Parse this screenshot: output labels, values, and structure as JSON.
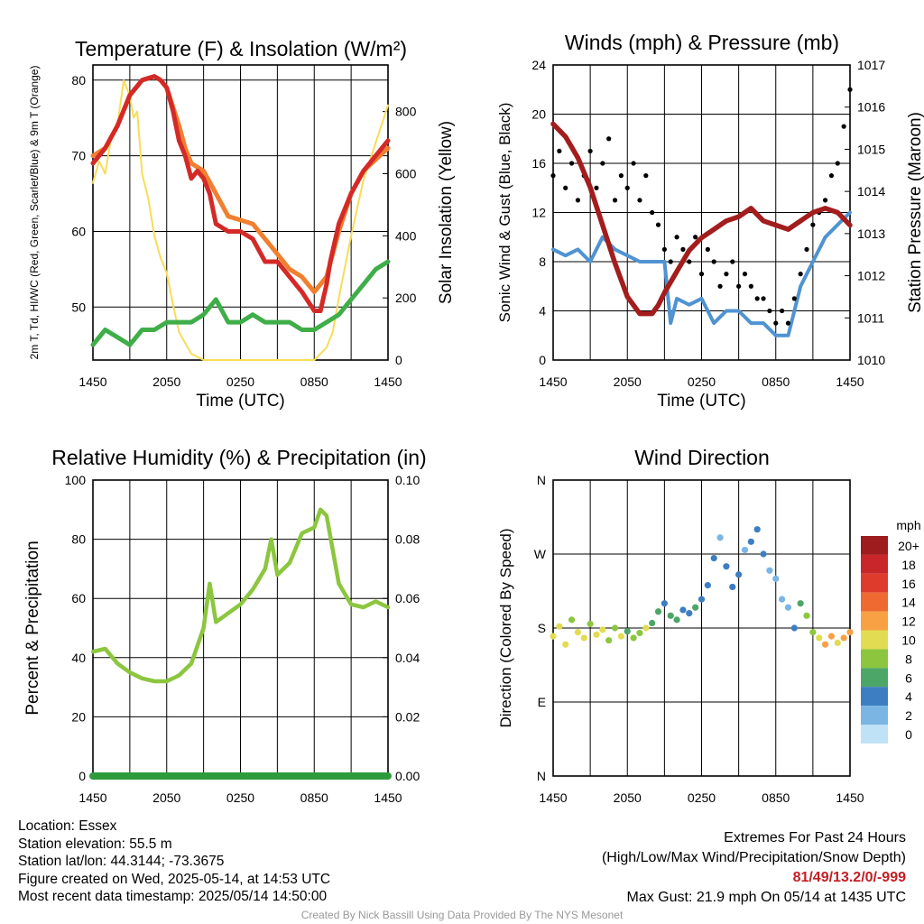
{
  "colors": {
    "temperature": "#d42a27",
    "dewpoint": "#3fae49",
    "t9m": "#f07f2f",
    "insolation": "#f7dd57",
    "wind": "#4f93d1",
    "gust": "#000000",
    "pressure": "#a31d1d",
    "rh": "#8cc63f",
    "precip": "#2d9b3c"
  },
  "info": {
    "location": "Location: Essex",
    "elevation": "Station elevation: 55.5 m",
    "latlon": "Station lat/lon: 44.3144; -73.3675",
    "created": "Figure created on Wed, 2025-05-14, at 14:53 UTC",
    "recent": "Most recent data timestamp: 2025/05/14 14:50:00"
  },
  "extremes": {
    "title": "Extremes For Past 24 Hours",
    "subtitle": "(High/Low/Max Wind/Precipitation/Snow Depth)",
    "values": "81/49/13.2/0/-999",
    "gust": "Max Gust: 21.9 mph On 05/14 at 1435 UTC"
  },
  "credit": "Created By Nick Bassill Using Data Provided By The NYS Mesonet",
  "chart_data": [
    {
      "type": "line",
      "title": "Temperature (F) & Insolation (W/m²)",
      "xlabel": "Time (UTC)",
      "ylabel": "2m T, Td, HI/WC (Red, Green, Scarlet/Blue) & 9m T (Orange)",
      "ylabel_right": "Solar Insolation (Yellow)",
      "x_ticks": [
        "1450",
        "2050",
        "0250",
        "0850",
        "1450"
      ],
      "x_range_hours": [
        0,
        24
      ],
      "ylim": [
        43,
        82
      ],
      "ylim_right": [
        0,
        950
      ],
      "y_ticks": [
        50,
        60,
        70,
        80
      ],
      "y_ticks_right": [
        0,
        200,
        400,
        600,
        800
      ],
      "grid": true,
      "series": [
        {
          "name": "2m T",
          "color_key": "temperature",
          "axis": "left",
          "x": [
            0,
            1,
            2,
            3,
            4,
            5,
            5.5,
            6,
            6.5,
            7,
            7.5,
            8,
            8.5,
            9,
            9.5,
            10,
            11,
            12,
            13,
            14,
            15,
            16,
            17,
            18,
            18.5,
            19,
            19.3,
            20,
            21,
            22,
            23,
            24
          ],
          "y": [
            69,
            71,
            74,
            78,
            80,
            80.5,
            80,
            79,
            76,
            72,
            70,
            67,
            68,
            67,
            65,
            61,
            60,
            60,
            59,
            56,
            56,
            54,
            52,
            49.5,
            49.5,
            53,
            56,
            61,
            65,
            68,
            70,
            72
          ]
        },
        {
          "name": "9m T",
          "color_key": "t9m",
          "axis": "left",
          "x": [
            0,
            1,
            2,
            3,
            4,
            5,
            5.5,
            6,
            6.5,
            7,
            7.5,
            8,
            9,
            10,
            11,
            12,
            13,
            14,
            15,
            16,
            17,
            18,
            19,
            20,
            21,
            22,
            23,
            24
          ],
          "y": [
            70,
            71,
            74,
            78,
            80,
            80.5,
            80,
            79,
            76.5,
            74,
            71,
            69,
            68,
            65,
            62,
            61.5,
            61,
            59,
            57,
            55,
            54,
            52,
            54,
            60,
            65,
            68,
            69.5,
            71
          ]
        },
        {
          "name": "2m Td",
          "color_key": "dewpoint",
          "axis": "left",
          "x": [
            0,
            1,
            2,
            3,
            4,
            5,
            6,
            7,
            8,
            9,
            10,
            11,
            12,
            13,
            14,
            15,
            16,
            17,
            18,
            19,
            20,
            21,
            22,
            23,
            24
          ],
          "y": [
            45,
            47,
            46,
            45,
            47,
            47,
            48,
            48,
            48,
            49,
            51,
            48,
            48,
            49,
            48,
            48,
            48,
            47,
            47,
            48,
            49,
            51,
            53,
            55,
            56
          ]
        },
        {
          "name": "Insolation",
          "color_key": "insolation",
          "axis": "right",
          "x": [
            0,
            0.5,
            1,
            1.5,
            2,
            2.5,
            3,
            3.3,
            3.6,
            4,
            4.5,
            5,
            5.5,
            6,
            6.5,
            7,
            8,
            9,
            10,
            11,
            12,
            13,
            14,
            15,
            16,
            17,
            18,
            19,
            19.5,
            20,
            21,
            22,
            23,
            24
          ],
          "y": [
            570,
            640,
            600,
            720,
            760,
            900,
            850,
            780,
            800,
            600,
            520,
            400,
            330,
            280,
            180,
            90,
            20,
            0,
            0,
            0,
            0,
            0,
            0,
            0,
            0,
            0,
            0,
            40,
            90,
            200,
            400,
            580,
            700,
            820
          ]
        }
      ]
    },
    {
      "type": "line",
      "title": "Winds (mph) & Pressure (mb)",
      "xlabel": "Time (UTC)",
      "ylabel": "Sonic Wind & Gust (Blue, Black)",
      "ylabel_right": "Station Pressure (Maroon)",
      "x_ticks": [
        "1450",
        "2050",
        "0250",
        "0850",
        "1450"
      ],
      "x_range_hours": [
        0,
        24
      ],
      "ylim": [
        0,
        24
      ],
      "ylim_right": [
        1010,
        1017
      ],
      "y_ticks": [
        0,
        4,
        8,
        12,
        16,
        20,
        24
      ],
      "y_ticks_right": [
        1010,
        1011,
        1012,
        1013,
        1014,
        1015,
        1016,
        1017
      ],
      "grid": true,
      "series": [
        {
          "name": "Sonic Wind",
          "color_key": "wind",
          "axis": "left",
          "x": [
            0,
            1,
            2,
            3,
            4,
            5,
            6,
            7,
            8,
            9,
            9.5,
            10,
            11,
            12,
            13,
            14,
            15,
            16,
            17,
            18,
            19,
            20,
            21,
            22,
            23,
            24
          ],
          "y": [
            9,
            8.5,
            9,
            8,
            10,
            9,
            8.5,
            8,
            8,
            8,
            3,
            5,
            4.5,
            5,
            3,
            4,
            4,
            3,
            3,
            2,
            2,
            6,
            8,
            10,
            11,
            12
          ]
        },
        {
          "name": "Gust",
          "color_key": "gust",
          "axis": "left",
          "style": "points",
          "x": [
            0,
            0.5,
            1,
            1.5,
            2,
            2.5,
            3,
            3.5,
            4,
            4.5,
            5,
            5.5,
            6,
            6.5,
            7,
            7.5,
            8,
            8.5,
            9,
            9.5,
            10,
            10.5,
            11,
            11.5,
            12,
            12.5,
            13,
            13.5,
            14,
            14.5,
            15,
            15.5,
            16,
            16.5,
            17,
            17.5,
            18,
            18.5,
            19,
            19.5,
            20,
            20.5,
            21,
            21.5,
            22,
            22.5,
            23,
            23.5,
            24
          ],
          "y": [
            15,
            17,
            14,
            16,
            13,
            15,
            17,
            14,
            16,
            18,
            13,
            15,
            14,
            16,
            13,
            15,
            12,
            11,
            9,
            8,
            10,
            9,
            8,
            10,
            7,
            9,
            8,
            6,
            7,
            8,
            6,
            7,
            6,
            5,
            5,
            4,
            3,
            4,
            3,
            5,
            7,
            9,
            11,
            12,
            13,
            15,
            16,
            19,
            22
          ]
        },
        {
          "name": "Station Pressure",
          "color_key": "pressure",
          "axis": "right",
          "x": [
            0,
            1,
            2,
            3,
            4,
            5,
            6,
            7,
            8,
            8.5,
            9,
            10,
            11,
            12,
            13,
            14,
            15,
            16,
            17,
            18,
            19,
            20,
            21,
            22,
            23,
            24
          ],
          "y": [
            1015.6,
            1015.3,
            1014.8,
            1014.1,
            1013.2,
            1012.3,
            1011.5,
            1011.1,
            1011.1,
            1011.3,
            1011.6,
            1012.1,
            1012.6,
            1012.9,
            1013.1,
            1013.3,
            1013.4,
            1013.6,
            1013.3,
            1013.2,
            1013.1,
            1013.3,
            1013.5,
            1013.6,
            1013.5,
            1013.2
          ]
        }
      ]
    },
    {
      "type": "line",
      "title": "Relative Humidity (%) & Precipitation (in)",
      "xlabel": "",
      "ylabel": "Percent & Precipitation",
      "x_ticks": [
        "1450",
        "2050",
        "0250",
        "0850",
        "1450"
      ],
      "x_range_hours": [
        0,
        24
      ],
      "ylim": [
        0,
        100
      ],
      "ylim_right": [
        0,
        0.1
      ],
      "y_ticks": [
        0,
        20,
        40,
        60,
        80,
        100
      ],
      "y_ticks_right": [
        "0.00",
        "0.02",
        "0.04",
        "0.06",
        "0.08",
        "0.10"
      ],
      "grid": true,
      "series": [
        {
          "name": "Relative Humidity",
          "color_key": "rh",
          "axis": "left",
          "x": [
            0,
            1,
            2,
            3,
            4,
            5,
            6,
            7,
            8,
            9,
            9.5,
            10,
            11,
            12,
            13,
            14,
            14.5,
            15,
            16,
            17,
            18,
            18.5,
            19,
            20,
            21,
            22,
            23,
            24
          ],
          "y": [
            42,
            43,
            38,
            35,
            33,
            32,
            32,
            34,
            38,
            50,
            65,
            52,
            55,
            58,
            63,
            70,
            80,
            68,
            72,
            82,
            84,
            90,
            88,
            65,
            58,
            57,
            59,
            57
          ]
        },
        {
          "name": "Precipitation",
          "color_key": "precip",
          "axis": "right",
          "x": [
            0,
            24
          ],
          "y": [
            0,
            0
          ]
        }
      ]
    },
    {
      "type": "scatter",
      "title": "Wind Direction",
      "ylabel": "Direction (Colored By Speed)",
      "x_ticks": [
        "1450",
        "2050",
        "0250",
        "0850",
        "1450"
      ],
      "x_range_hours": [
        0,
        24
      ],
      "ylim": [
        0,
        360
      ],
      "y_ticks": [
        "N",
        "E",
        "S",
        "W",
        "N"
      ],
      "grid": true,
      "legend_title": "mph",
      "legend_labels": [
        "20+",
        "18",
        "16",
        "14",
        "12",
        "10",
        "8",
        "6",
        "4",
        "2",
        "0"
      ],
      "legend_colors": [
        "#9e1b1e",
        "#c8262b",
        "#df3b2c",
        "#ee6a31",
        "#f7a144",
        "#e2dc52",
        "#8cc63f",
        "#4ca667",
        "#3d7ec2",
        "#7ab5e3",
        "#bfe2f6"
      ],
      "x": [
        0,
        0.5,
        1,
        1.5,
        2,
        2.5,
        3,
        3.5,
        4,
        4.5,
        5,
        5.5,
        6,
        6.5,
        7,
        7.5,
        8,
        8.5,
        9,
        9.5,
        10,
        10.5,
        11,
        11.5,
        12,
        12.5,
        13,
        13.5,
        14,
        14.5,
        15,
        15.5,
        16,
        16.5,
        17,
        17.5,
        18,
        18.5,
        19,
        19.5,
        20,
        20.5,
        21,
        21.5,
        22,
        22.5,
        23,
        23.5,
        24
      ],
      "y": [
        170,
        182,
        160,
        190,
        175,
        168,
        185,
        172,
        178,
        165,
        180,
        170,
        176,
        168,
        174,
        180,
        186,
        200,
        210,
        195,
        190,
        202,
        198,
        205,
        215,
        232,
        265,
        290,
        255,
        230,
        245,
        275,
        285,
        300,
        270,
        250,
        240,
        215,
        205,
        180,
        210,
        195,
        175,
        168,
        160,
        170,
        162,
        168,
        175
      ],
      "speed": [
        9,
        10,
        10,
        8,
        9,
        10,
        8,
        9,
        10,
        7,
        8,
        9,
        6,
        7,
        8,
        9,
        6,
        5,
        4,
        6,
        5,
        4,
        3,
        5,
        4,
        3,
        4,
        2,
        3,
        4,
        3,
        2,
        3,
        4,
        3,
        2,
        2,
        1,
        2,
        3,
        6,
        7,
        8,
        9,
        11,
        12,
        10,
        12,
        11
      ]
    }
  ]
}
